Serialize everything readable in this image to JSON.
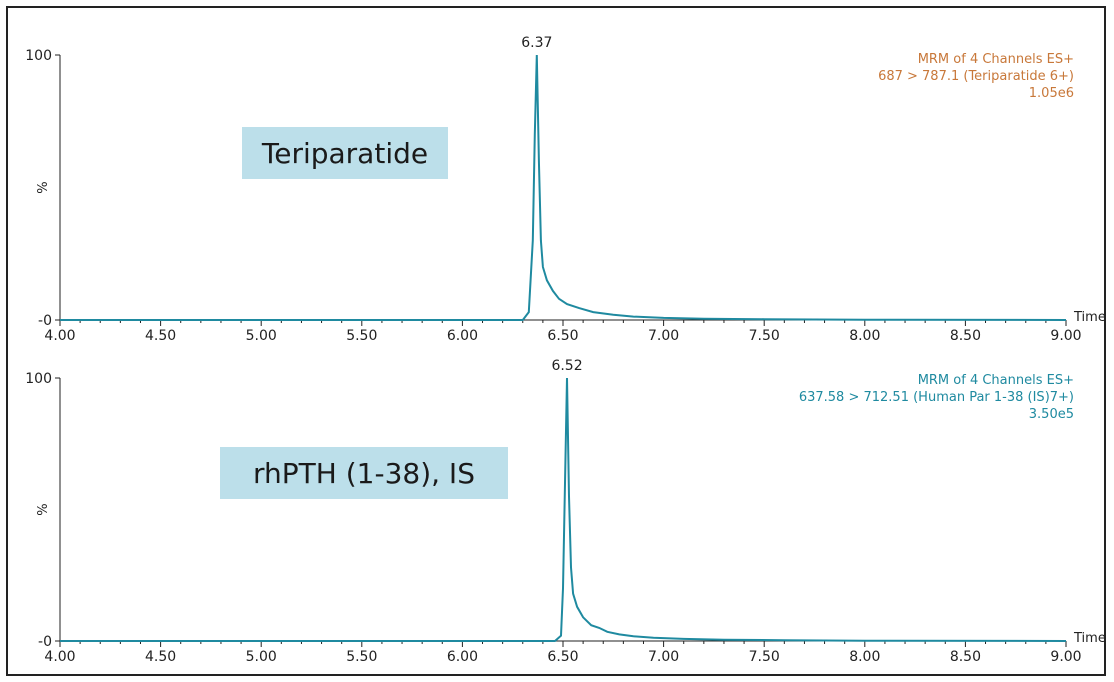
{
  "chart_data": [
    {
      "type": "line",
      "panel": "top",
      "xlabel": "Time",
      "ylabel": "%",
      "xlim": [
        4.0,
        9.0
      ],
      "ylim": [
        0,
        100
      ],
      "x_ticks": [
        "4.00",
        "4.50",
        "5.00",
        "5.50",
        "6.00",
        "6.50",
        "7.00",
        "7.50",
        "8.00",
        "8.50",
        "9.00"
      ],
      "y_ticks": [
        "100",
        "-0"
      ],
      "peak_label": "6.37",
      "box_label": "Teriparatide",
      "info_lines": [
        "MRM of 4 Channels ES+",
        "687 > 787.1 (Teriparatide 6+)",
        "1.05e6"
      ],
      "info_color": "#c8783a",
      "line_color": "#1f8aa0",
      "series": [
        {
          "x": [
            4.0,
            5.0,
            6.0,
            6.3,
            6.33,
            6.35,
            6.36,
            6.37,
            6.38,
            6.39,
            6.4,
            6.42,
            6.45,
            6.48,
            6.52,
            6.58,
            6.65,
            6.75,
            6.85,
            7.0,
            7.2,
            7.5,
            8.0,
            9.0
          ],
          "y": [
            0,
            0,
            0,
            0,
            3,
            30,
            70,
            100,
            60,
            30,
            20,
            15,
            11,
            8,
            6,
            4.5,
            3,
            2,
            1.3,
            0.8,
            0.5,
            0.3,
            0.1,
            0
          ]
        }
      ]
    },
    {
      "type": "line",
      "panel": "bottom",
      "xlabel": "Time",
      "ylabel": "%",
      "xlim": [
        4.0,
        9.0
      ],
      "ylim": [
        0,
        100
      ],
      "x_ticks": [
        "4.00",
        "4.50",
        "5.00",
        "5.50",
        "6.00",
        "6.50",
        "7.00",
        "7.50",
        "8.00",
        "8.50",
        "9.00"
      ],
      "y_ticks": [
        "100",
        "-0"
      ],
      "peak_label": "6.52",
      "box_label": "rhPTH (1-38), IS",
      "info_lines": [
        "MRM of 4 Channels ES+",
        "637.58 > 712.51 (Human Par 1-38 (IS)7+)",
        "3.50e5"
      ],
      "info_color": "#1f8aa0",
      "line_color": "#1f8aa0",
      "series": [
        {
          "x": [
            4.0,
            5.0,
            6.0,
            6.46,
            6.49,
            6.5,
            6.51,
            6.52,
            6.53,
            6.54,
            6.55,
            6.57,
            6.6,
            6.64,
            6.68,
            6.72,
            6.78,
            6.85,
            6.95,
            7.1,
            7.3,
            7.6,
            8.0,
            9.0
          ],
          "y": [
            0,
            0,
            0,
            0,
            2,
            20,
            60,
            100,
            55,
            28,
            18,
            13,
            9,
            6,
            5,
            3.5,
            2.5,
            1.8,
            1.2,
            0.8,
            0.5,
            0.3,
            0.1,
            0
          ]
        }
      ]
    }
  ]
}
